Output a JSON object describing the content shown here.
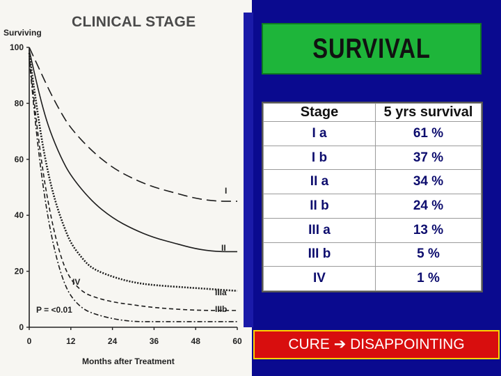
{
  "chart_data": {
    "type": "line",
    "title": "CLINICAL STAGE",
    "xlabel": "Months after Treatment",
    "ylabel": "Surviving",
    "xlim": [
      0,
      60
    ],
    "ylim": [
      0,
      100
    ],
    "x_ticks": [
      0,
      12,
      24,
      36,
      48,
      60
    ],
    "y_ticks": [
      0,
      20,
      40,
      60,
      80,
      100
    ],
    "annotation": "P = <0.01",
    "series": [
      {
        "name": "I",
        "style": "long-dash",
        "points": [
          [
            0,
            100
          ],
          [
            3,
            92
          ],
          [
            6,
            84
          ],
          [
            9,
            77
          ],
          [
            12,
            71
          ],
          [
            18,
            63
          ],
          [
            24,
            57
          ],
          [
            30,
            53
          ],
          [
            36,
            50
          ],
          [
            42,
            48
          ],
          [
            48,
            46
          ],
          [
            54,
            45
          ],
          [
            60,
            45
          ]
        ]
      },
      {
        "name": "II",
        "style": "solid",
        "points": [
          [
            0,
            99
          ],
          [
            2,
            88
          ],
          [
            4,
            78
          ],
          [
            6,
            70
          ],
          [
            9,
            61
          ],
          [
            12,
            54
          ],
          [
            18,
            45
          ],
          [
            24,
            39
          ],
          [
            30,
            35
          ],
          [
            36,
            32
          ],
          [
            42,
            30
          ],
          [
            48,
            28
          ],
          [
            54,
            27
          ],
          [
            60,
            27
          ]
        ]
      },
      {
        "name": "IIIa",
        "style": "dotted",
        "points": [
          [
            0,
            98
          ],
          [
            2,
            80
          ],
          [
            4,
            64
          ],
          [
            6,
            52
          ],
          [
            8,
            43
          ],
          [
            10,
            36
          ],
          [
            12,
            30
          ],
          [
            15,
            25
          ],
          [
            18,
            21
          ],
          [
            24,
            18
          ],
          [
            30,
            16
          ],
          [
            36,
            15
          ],
          [
            48,
            14
          ],
          [
            60,
            13
          ]
        ]
      },
      {
        "name": "IIIb",
        "style": "short-dash",
        "points": [
          [
            0,
            97
          ],
          [
            2,
            74
          ],
          [
            4,
            55
          ],
          [
            6,
            41
          ],
          [
            8,
            30
          ],
          [
            10,
            22
          ],
          [
            12,
            17
          ],
          [
            15,
            13
          ],
          [
            18,
            11
          ],
          [
            24,
            9
          ],
          [
            30,
            8
          ],
          [
            36,
            7
          ],
          [
            48,
            6
          ],
          [
            60,
            6
          ]
        ]
      },
      {
        "name": "IV",
        "style": "dash-dot",
        "points": [
          [
            0,
            96
          ],
          [
            2,
            70
          ],
          [
            4,
            50
          ],
          [
            6,
            35
          ],
          [
            8,
            24
          ],
          [
            10,
            16
          ],
          [
            12,
            11
          ],
          [
            15,
            7
          ],
          [
            18,
            5
          ],
          [
            24,
            3
          ],
          [
            30,
            2
          ],
          [
            36,
            2
          ],
          [
            48,
            2
          ],
          [
            60,
            2
          ]
        ]
      }
    ]
  },
  "slide": {
    "title": "SURVIVAL",
    "table": {
      "headers": [
        "Stage",
        "5 yrs survival"
      ],
      "rows": [
        [
          "I a",
          "61 %"
        ],
        [
          "I b",
          "37 %"
        ],
        [
          "II a",
          "34 %"
        ],
        [
          "II b",
          "24 %"
        ],
        [
          "III a",
          "13 %"
        ],
        [
          "III b",
          "5 %"
        ],
        [
          "IV",
          "1 %"
        ]
      ]
    },
    "banner": {
      "left": "CURE",
      "arrow": "➔",
      "right": "DISAPPOINTING"
    }
  },
  "colors": {
    "slide_bg": "#0a0a8f",
    "title_bg": "#1eb53a",
    "banner_bg": "#d80e0e",
    "banner_border": "#ffd400"
  }
}
